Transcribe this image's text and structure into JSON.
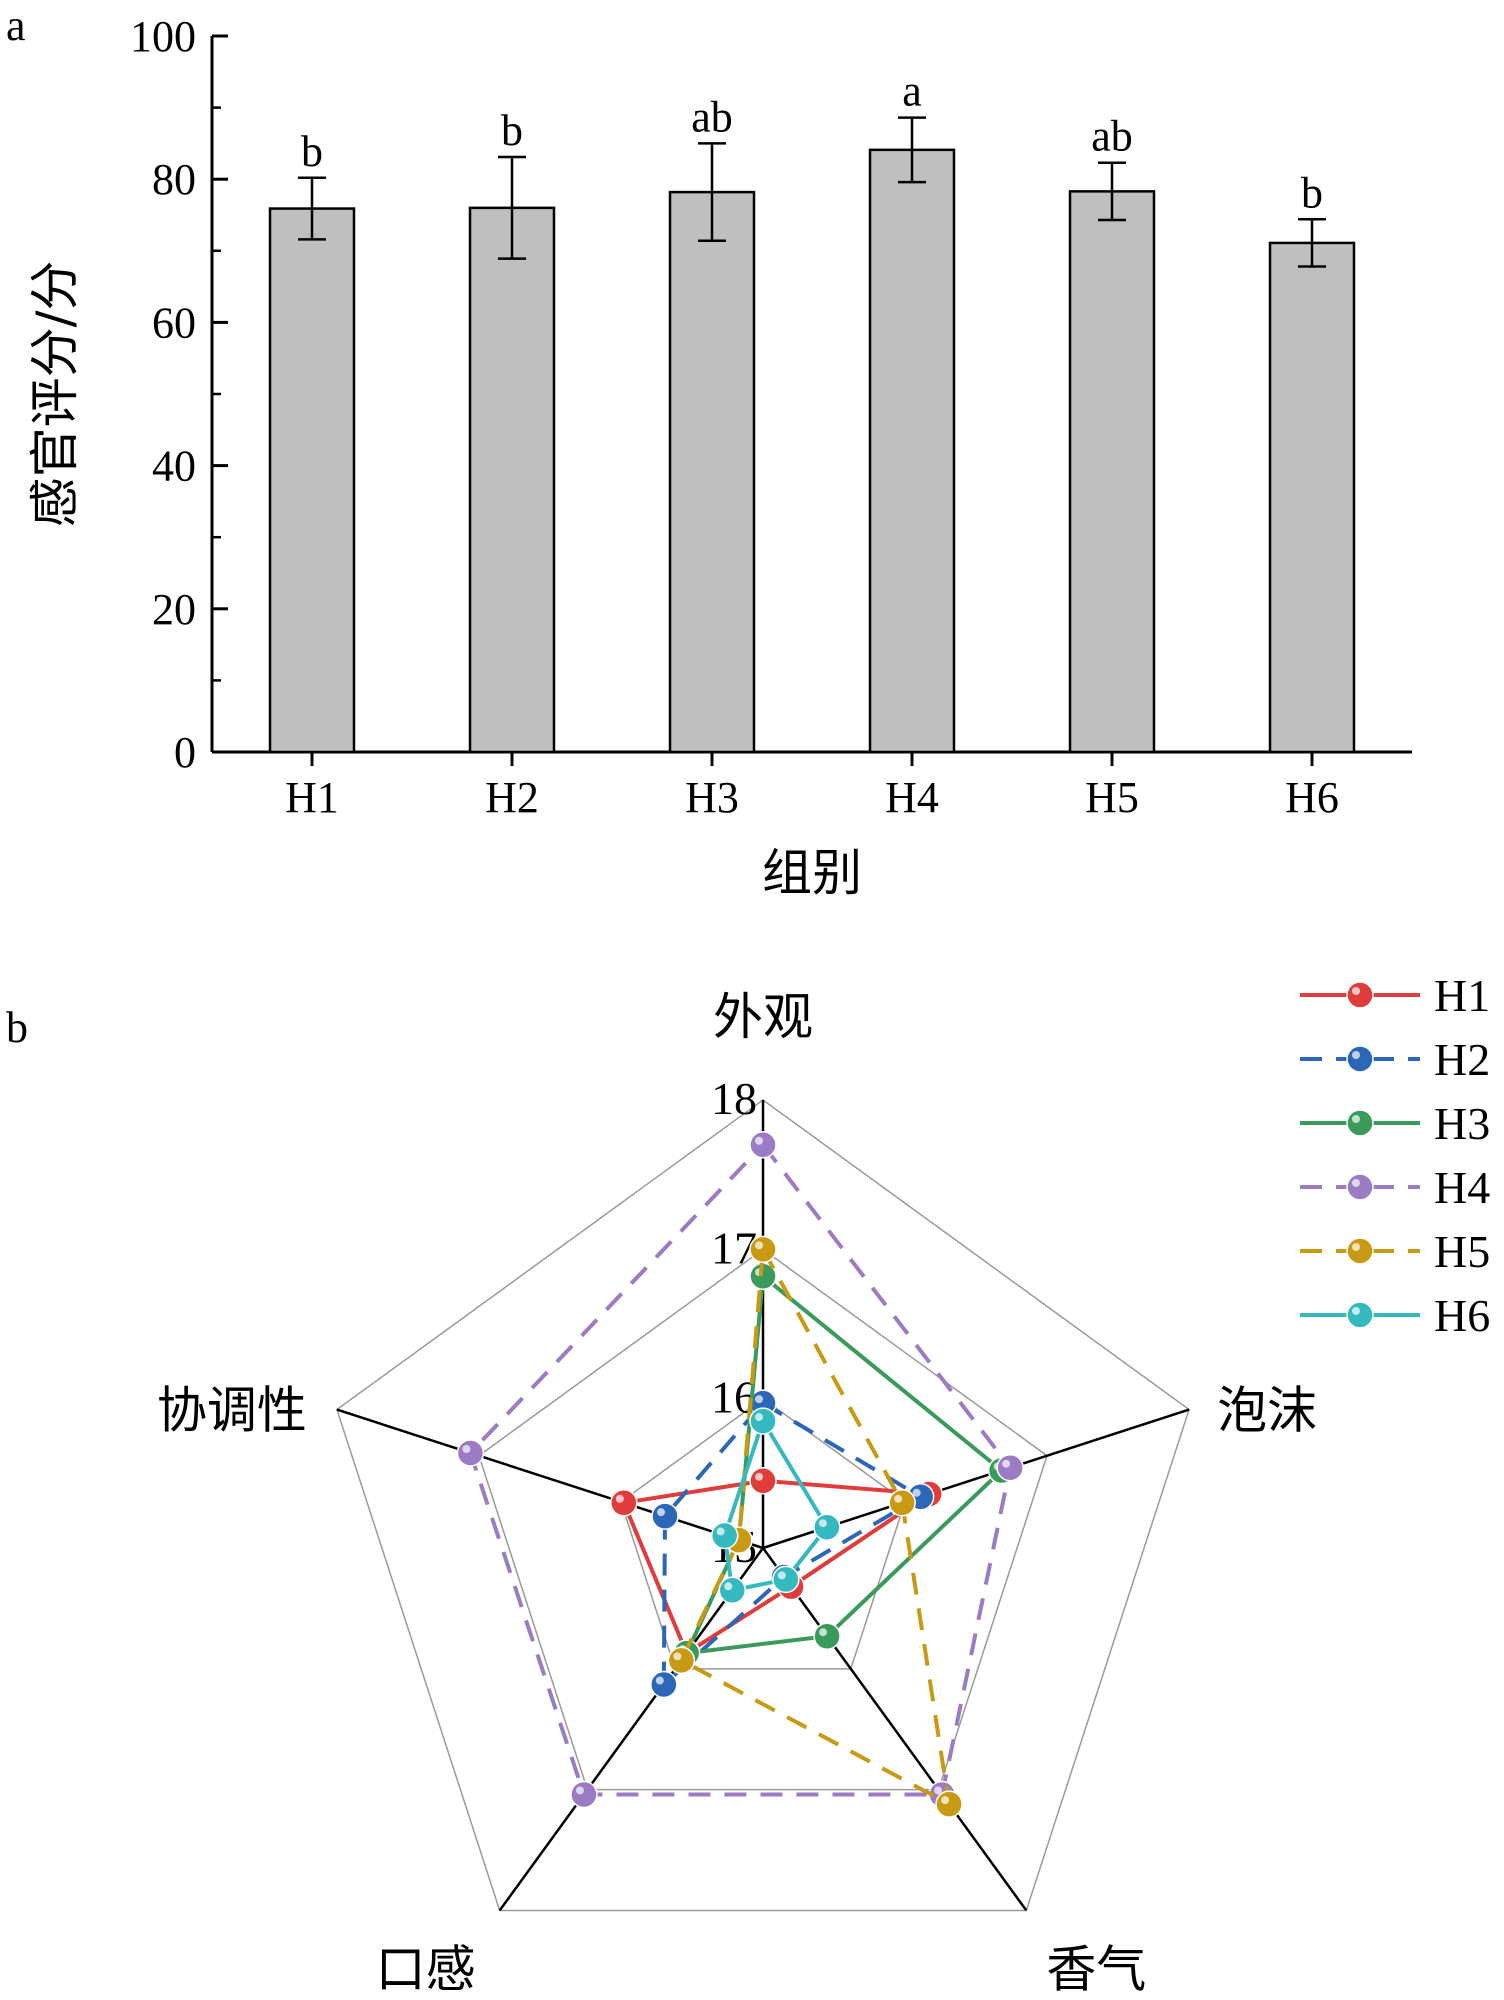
{
  "panels": {
    "a": "a",
    "b": "b"
  },
  "chart_data": [
    {
      "type": "bar",
      "panel": "a",
      "categories": [
        "H1",
        "H2",
        "H3",
        "H4",
        "H5",
        "H6"
      ],
      "values": [
        75.9,
        76.0,
        78.2,
        84.1,
        78.3,
        71.1
      ],
      "error": [
        4.3,
        7.1,
        6.8,
        4.5,
        4.0,
        3.3
      ],
      "significance": [
        "b",
        "b",
        "ab",
        "a",
        "ab",
        "b"
      ],
      "xlabel": "组别",
      "ylabel": "感官评分/分",
      "ylim": [
        0,
        100
      ],
      "yticks": [
        0,
        20,
        40,
        60,
        80,
        100
      ],
      "bar_color": "#bfbfbf"
    },
    {
      "type": "radar",
      "panel": "b",
      "axes": [
        "外观",
        "泡沫",
        "香气",
        "口感",
        "协调性"
      ],
      "rlim": [
        15,
        18
      ],
      "rticks": [
        "15",
        "16",
        "17",
        "18"
      ],
      "series": [
        {
          "name": "H1",
          "values": [
            15.45,
            16.17,
            15.32,
            15.87,
            15.98
          ],
          "color": "#e03c3c",
          "dash": false
        },
        {
          "name": "H2",
          "values": [
            15.97,
            16.11,
            15.24,
            16.13,
            15.69
          ],
          "color": "#2b66b8",
          "dash": true
        },
        {
          "name": "H3",
          "values": [
            16.82,
            16.68,
            15.73,
            15.87,
            15.17
          ],
          "color": "#3a9a5c",
          "dash": false
        },
        {
          "name": "H4",
          "values": [
            17.7,
            16.74,
            17.04,
            17.04,
            17.06
          ],
          "color": "#9b7bc4",
          "dash": true
        },
        {
          "name": "H5",
          "values": [
            17.0,
            15.98,
            17.12,
            15.93,
            15.17
          ],
          "color": "#c89a14",
          "dash": true
        },
        {
          "name": "H6",
          "values": [
            15.85,
            15.45,
            15.26,
            15.35,
            15.27
          ],
          "color": "#35b9c1",
          "dash": false
        }
      ]
    }
  ]
}
